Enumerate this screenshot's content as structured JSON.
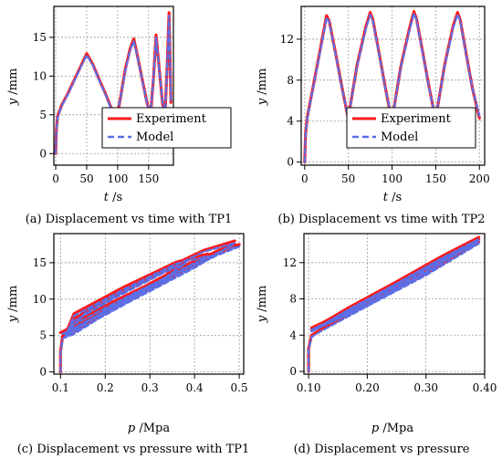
{
  "colors": {
    "experiment": "#ff1a1a",
    "model": "#5c6ee6",
    "grid": "#9a9a9a",
    "frame": "#000000"
  },
  "legend": {
    "experiment": "Experiment",
    "model": "Model"
  },
  "chart_data": [
    {
      "id": "a",
      "type": "line",
      "caption": "(a) Displacement vs time with TP1",
      "xlabel_var": "t",
      "xlabel_unit": "/s",
      "ylabel_var": "y",
      "ylabel_unit": "/mm",
      "xlim": [
        -3,
        190
      ],
      "ylim": [
        -1.5,
        19
      ],
      "xticks": [
        0,
        50,
        100,
        150
      ],
      "xticklabels": [
        "0",
        "50",
        "100",
        "150"
      ],
      "yticks": [
        0,
        5,
        10,
        15
      ],
      "yticklabels": [
        "0",
        "5",
        "10",
        "15"
      ],
      "grid": true,
      "legend_position": "bottom-right",
      "series": [
        {
          "name": "Experiment",
          "x": [
            0,
            1,
            3,
            10,
            20,
            30,
            40,
            50,
            60,
            70,
            80,
            90,
            98,
            105,
            112,
            120,
            126,
            133,
            140,
            147,
            153,
            158,
            162,
            167,
            172,
            176,
            180,
            183,
            186
          ],
          "y": [
            0,
            3,
            4.8,
            6.3,
            7.8,
            9.5,
            11.2,
            12.9,
            11.5,
            9.6,
            7.8,
            5.8,
            4.3,
            7.4,
            10.8,
            13.5,
            14.8,
            12.2,
            9.4,
            6.7,
            4.9,
            10,
            15.3,
            11,
            6.8,
            4.2,
            11.5,
            18.2,
            6.6
          ]
        },
        {
          "name": "Model",
          "x": [
            0,
            1,
            3,
            10,
            20,
            30,
            40,
            50,
            60,
            70,
            80,
            90,
            98,
            105,
            112,
            120,
            126,
            133,
            140,
            147,
            153,
            158,
            162,
            167,
            172,
            176,
            180,
            183,
            186
          ],
          "y": [
            0,
            3,
            4.6,
            6.2,
            7.7,
            9.4,
            11.1,
            12.7,
            11.4,
            9.5,
            7.7,
            5.7,
            4.5,
            7.3,
            10.6,
            13.3,
            14.5,
            12.1,
            9.3,
            6.6,
            5,
            10,
            15,
            10.9,
            6.9,
            4.4,
            11.3,
            17.8,
            6.7
          ]
        }
      ]
    },
    {
      "id": "b",
      "type": "line",
      "caption": "(b) Displacement vs time with TP2",
      "xlabel_var": "t",
      "xlabel_unit": "/s",
      "ylabel_var": "y",
      "ylabel_unit": "/mm",
      "xlim": [
        -4,
        206
      ],
      "ylim": [
        -0.3,
        15.2
      ],
      "xticks": [
        0,
        50,
        100,
        150,
        200
      ],
      "xticklabels": [
        "0",
        "50",
        "100",
        "150",
        "200"
      ],
      "yticks": [
        0,
        4,
        8,
        12
      ],
      "yticklabels": [
        "0",
        "4",
        "8",
        "12"
      ],
      "grid": true,
      "legend_position": "bottom-right",
      "series": [
        {
          "name": "Experiment",
          "x": [
            0,
            1,
            3,
            10,
            20,
            25,
            28,
            35,
            42,
            49,
            52,
            60,
            70,
            75,
            78,
            85,
            92,
            99,
            102,
            110,
            120,
            125,
            128,
            135,
            142,
            149,
            152,
            160,
            170,
            175,
            178,
            185,
            192,
            200
          ],
          "y": [
            0,
            2.8,
            4.4,
            7.5,
            12,
            14.3,
            13.8,
            10.8,
            7.6,
            4.6,
            5.4,
            9.5,
            13.2,
            14.6,
            13.9,
            10.7,
            7.4,
            4.3,
            5.2,
            9.3,
            13.1,
            14.7,
            14,
            10.8,
            7.5,
            4.5,
            5.3,
            9.4,
            13.3,
            14.6,
            13.9,
            10.5,
            7.2,
            4.3
          ]
        },
        {
          "name": "Model",
          "x": [
            0,
            1,
            3,
            10,
            20,
            25,
            28,
            35,
            42,
            49,
            52,
            60,
            70,
            75,
            78,
            85,
            92,
            99,
            102,
            110,
            120,
            125,
            128,
            135,
            142,
            149,
            152,
            160,
            170,
            175,
            178,
            185,
            192,
            200
          ],
          "y": [
            0,
            2.7,
            4.3,
            7.4,
            11.8,
            14.1,
            13.7,
            10.7,
            7.5,
            4.7,
            5.4,
            9.4,
            13,
            14.4,
            13.8,
            10.6,
            7.3,
            4.5,
            5.2,
            9.2,
            12.9,
            14.5,
            13.9,
            10.7,
            7.4,
            4.6,
            5.3,
            9.3,
            13.1,
            14.4,
            13.8,
            10.4,
            7.2,
            4.5
          ]
        }
      ]
    },
    {
      "id": "c",
      "type": "line",
      "caption": "(c) Displacement vs pressure with TP1",
      "xlabel_var": "p",
      "xlabel_unit": "/Mpa",
      "ylabel_var": "y",
      "ylabel_unit": "/mm",
      "xlim": [
        0.085,
        0.51
      ],
      "ylim": [
        -0.3,
        19
      ],
      "xticks": [
        0.1,
        0.2,
        0.3,
        0.4,
        0.5
      ],
      "xticklabels": [
        "0.1",
        "0.2",
        "0.3",
        "0.4",
        "0.5"
      ],
      "yticks": [
        0,
        5,
        10,
        15
      ],
      "yticklabels": [
        "0",
        "5",
        "10",
        "15"
      ],
      "grid": true,
      "series": [
        {
          "name": "Experiment",
          "x": [
            0.1,
            0.1,
            0.105,
            0.13,
            0.2,
            0.3,
            0.35,
            0.3,
            0.2,
            0.13,
            0.11,
            0.2,
            0.3,
            0.38,
            0.33,
            0.22,
            0.13,
            0.11,
            0.2,
            0.32,
            0.43,
            0.36,
            0.24,
            0.13,
            0.11,
            0.25,
            0.4,
            0.49,
            0.42,
            0.28,
            0.16,
            0.11,
            0.25,
            0.38,
            0.45,
            0.5,
            0.47,
            0.35,
            0.22,
            0.12,
            0.1
          ],
          "y": [
            0,
            2.8,
            5,
            5.5,
            8.2,
            11.6,
            13,
            12.1,
            9.1,
            6.7,
            5.6,
            8.4,
            11.8,
            15.2,
            13.8,
            10.4,
            7.3,
            5,
            8.8,
            12.8,
            16.2,
            15.1,
            11.6,
            8,
            5,
            9.8,
            14.6,
            18,
            16.7,
            12.6,
            8.7,
            5.4,
            10.3,
            14.2,
            16.3,
            17.5,
            17.2,
            13.6,
            9.4,
            6,
            5.4
          ]
        },
        {
          "name": "Model",
          "x": [
            0.1,
            0.1,
            0.105,
            0.13,
            0.2,
            0.3,
            0.35,
            0.3,
            0.2,
            0.13,
            0.11,
            0.2,
            0.3,
            0.38,
            0.33,
            0.22,
            0.13,
            0.11,
            0.2,
            0.32,
            0.43,
            0.36,
            0.24,
            0.13,
            0.11,
            0.25,
            0.4,
            0.49,
            0.42,
            0.28,
            0.16,
            0.11,
            0.25,
            0.38,
            0.45,
            0.5,
            0.47,
            0.35,
            0.22,
            0.12,
            0.1
          ],
          "y": [
            0,
            2.6,
            4.6,
            5.2,
            7.9,
            11.3,
            12.8,
            11.9,
            8.8,
            6.5,
            5.3,
            8.1,
            11.5,
            14.9,
            13.6,
            10.1,
            7,
            4.8,
            8.5,
            12.5,
            15.9,
            14.9,
            11.3,
            7.7,
            4.8,
            9.5,
            14.3,
            17.7,
            16.5,
            12.3,
            8.4,
            5.1,
            10,
            13.9,
            16,
            17.2,
            16.9,
            13.3,
            9.1,
            5.7,
            5.1
          ]
        }
      ]
    },
    {
      "id": "d",
      "type": "line",
      "caption": "(d) Displacement vs pressure",
      "xlabel_var": "p",
      "xlabel_unit": "/Mpa",
      "ylabel_var": "y",
      "ylabel_unit": "/mm",
      "xlim": [
        0.092,
        0.4
      ],
      "ylim": [
        -0.3,
        15.2
      ],
      "xticks": [
        0.1,
        0.2,
        0.3,
        0.4
      ],
      "xticklabels": [
        "0.10",
        "0.20",
        "0.30",
        "0.40"
      ],
      "yticks": [
        0,
        4,
        8,
        12
      ],
      "yticklabels": [
        "0",
        "4",
        "8",
        "12"
      ],
      "grid": true,
      "series": [
        {
          "name": "Experiment",
          "x": [
            0.1,
            0.1,
            0.105,
            0.12,
            0.2,
            0.3,
            0.39,
            0.33,
            0.25,
            0.17,
            0.105,
            0.2,
            0.3,
            0.39,
            0.33,
            0.25,
            0.17,
            0.105,
            0.2,
            0.3,
            0.39,
            0.33,
            0.25,
            0.17,
            0.105,
            0.2,
            0.3,
            0.39,
            0.34,
            0.26,
            0.18,
            0.11
          ],
          "y": [
            0,
            2.5,
            4,
            4.6,
            7.4,
            10.8,
            14.3,
            12.6,
            9.6,
            6.8,
            4.8,
            7.6,
            11.1,
            14.6,
            12.7,
            9.8,
            7,
            4.7,
            7.4,
            11,
            14.8,
            12.8,
            9.9,
            7.1,
            4.6,
            7.5,
            11.2,
            14.6,
            12.9,
            10,
            7.2,
            4.8
          ]
        },
        {
          "name": "Model",
          "x": [
            0.1,
            0.1,
            0.105,
            0.12,
            0.2,
            0.3,
            0.39,
            0.33,
            0.25,
            0.17,
            0.105,
            0.2,
            0.3,
            0.39,
            0.33,
            0.25,
            0.17,
            0.105,
            0.2,
            0.3,
            0.39,
            0.33,
            0.25,
            0.17,
            0.105,
            0.2,
            0.3,
            0.39,
            0.34,
            0.26,
            0.18,
            0.11
          ],
          "y": [
            0,
            2.4,
            3.8,
            4.4,
            7.2,
            10.6,
            14.1,
            12.4,
            9.4,
            6.6,
            4.6,
            7.4,
            10.9,
            14.4,
            12.5,
            9.6,
            6.8,
            4.5,
            7.2,
            10.8,
            14.6,
            12.6,
            9.7,
            6.9,
            4.4,
            7.3,
            11,
            14.4,
            12.7,
            9.8,
            7,
            4.6
          ]
        }
      ]
    }
  ]
}
